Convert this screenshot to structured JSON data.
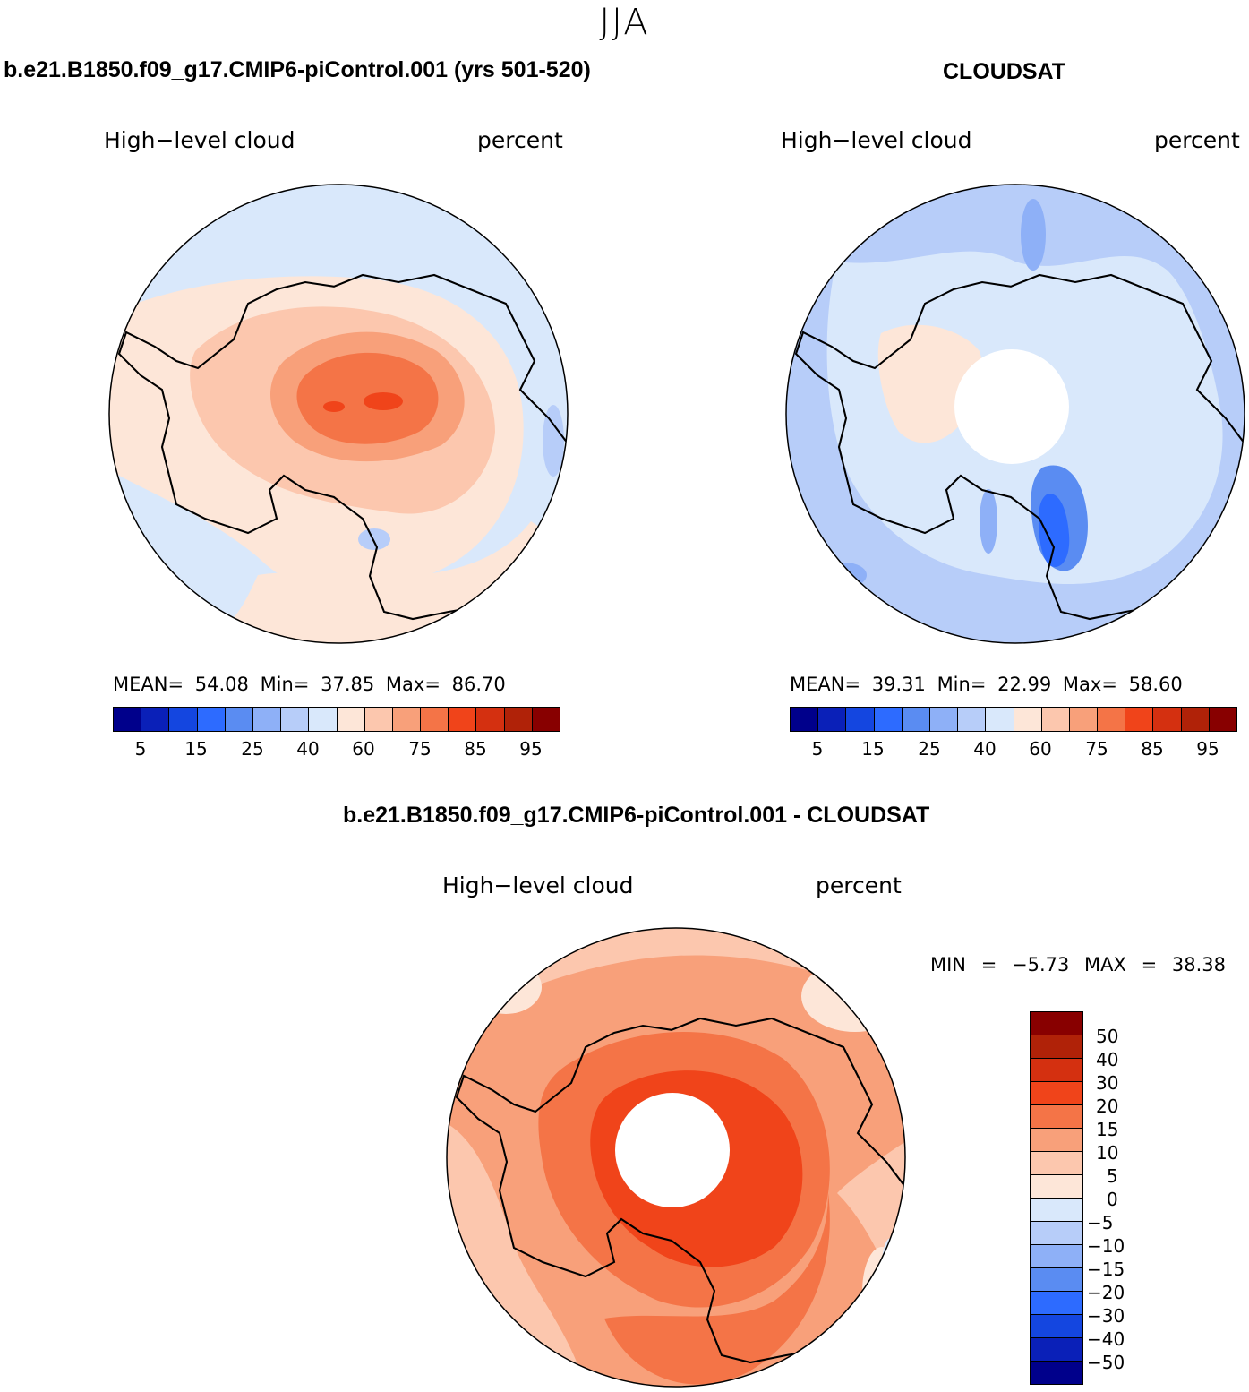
{
  "season": "JJA",
  "panels": [
    {
      "title": "b.e21.B1850.f09_g17.CMIP6-piControl.001 (yrs 501-520)",
      "variable": "High−level cloud",
      "units": "percent",
      "mean_label": "MEAN=",
      "mean": "54.08",
      "min_label": "Min=",
      "min": "37.85",
      "max_label": "Max=",
      "max": "86.70"
    },
    {
      "title": "CLOUDSAT",
      "variable": "High−level cloud",
      "units": "percent",
      "mean_label": "MEAN=",
      "mean": "39.31",
      "min_label": "Min=",
      "min": "22.99",
      "max_label": "Max=",
      "max": "58.60"
    }
  ],
  "diff": {
    "title": "b.e21.B1850.f09_g17.CMIP6-piControl.001 - CLOUDSAT",
    "variable": "High−level cloud",
    "units": "percent",
    "min_label": "MIN =",
    "min": "−5.73",
    "max_label": "MAX =",
    "max": "38.38",
    "levels": [
      "50",
      "40",
      "30",
      "20",
      "15",
      "10",
      "5",
      "0",
      "−5",
      "−10",
      "−15",
      "−20",
      "−30",
      "−40",
      "−50"
    ]
  },
  "colorbar_abs": {
    "ticks": [
      "5",
      "15",
      "25",
      "40",
      "60",
      "75",
      "85",
      "95"
    ],
    "colors": [
      "#00008b",
      "#0a20b8",
      "#1446e0",
      "#2d6bff",
      "#5a8cf2",
      "#8eb0f7",
      "#b7cdf9",
      "#d9e8fb",
      "#fde6d8",
      "#fcc7ae",
      "#f8a07a",
      "#f47447",
      "#f0441a",
      "#d43010",
      "#b02208",
      "#880000"
    ]
  },
  "colorbar_diff": {
    "colors": [
      "#880000",
      "#b02208",
      "#d43010",
      "#f0441a",
      "#f47447",
      "#f8a07a",
      "#fcc7ae",
      "#fde6d8",
      "#d9e8fb",
      "#b7cdf9",
      "#8eb0f7",
      "#5a8cf2",
      "#2d6bff",
      "#1446e0",
      "#0a20b8",
      "#00008b"
    ]
  },
  "chart_data": [
    {
      "type": "heatmap",
      "title": "b.e21.B1850.f09_g17.CMIP6-piControl.001 (yrs 501-520)",
      "projection": "south-polar stereographic",
      "variable": "High-level cloud",
      "units": "percent",
      "mean": 54.08,
      "min": 37.85,
      "max": 86.7,
      "levels": [
        5,
        10,
        15,
        20,
        25,
        30,
        40,
        50,
        60,
        70,
        75,
        80,
        85,
        90,
        95
      ]
    },
    {
      "type": "heatmap",
      "title": "CLOUDSAT",
      "projection": "south-polar stereographic",
      "variable": "High-level cloud",
      "units": "percent",
      "mean": 39.31,
      "min": 22.99,
      "max": 58.6,
      "levels": [
        5,
        10,
        15,
        20,
        25,
        30,
        40,
        50,
        60,
        70,
        75,
        80,
        85,
        90,
        95
      ]
    },
    {
      "type": "heatmap",
      "title": "b.e21.B1850.f09_g17.CMIP6-piControl.001 - CLOUDSAT",
      "projection": "south-polar stereographic",
      "variable": "High-level cloud",
      "units": "percent",
      "min": -5.73,
      "max": 38.38,
      "levels": [
        -50,
        -40,
        -30,
        -20,
        -15,
        -10,
        -5,
        0,
        5,
        10,
        15,
        20,
        30,
        40,
        50
      ]
    }
  ]
}
